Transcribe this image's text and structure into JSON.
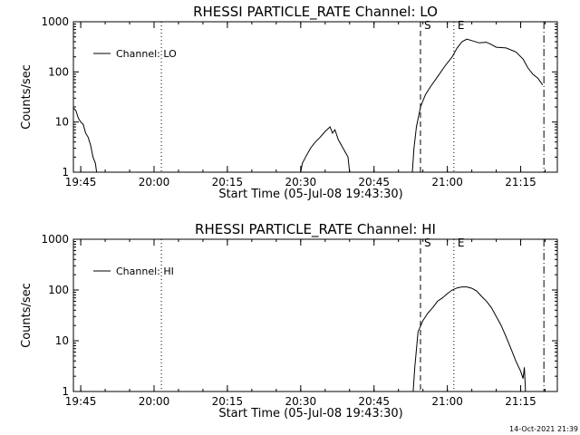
{
  "chart_data": [
    {
      "type": "line",
      "title": "RHESSI PARTICLE_RATE Channel: LO",
      "xlabel": "Start Time (05-Jul-08 19:43:30)",
      "ylabel": "Counts/sec",
      "yscale": "log",
      "ylim": [
        1,
        1000
      ],
      "xlim": [
        "19:43:30",
        "21:22:30"
      ],
      "x_tick_labels": [
        "19:45",
        "20:00",
        "20:15",
        "20:30",
        "20:45",
        "21:00",
        "21:15"
      ],
      "y_tick_labels": [
        "1",
        "10",
        "100",
        "1000"
      ],
      "legend": {
        "label": "Channel: LO",
        "position": "top-left"
      },
      "markers": [
        {
          "time": "20:01:30",
          "label": "",
          "style": "dotted"
        },
        {
          "time": "20:54:30",
          "label": "S",
          "style": "dashed"
        },
        {
          "time": "21:01:20",
          "label": "E",
          "style": "dotted"
        },
        {
          "time": "21:19:45",
          "label": "",
          "style": "dashdot"
        }
      ],
      "series": [
        {
          "name": "Channel: LO",
          "segments": [
            [
              [
                "19:43:30",
                19
              ],
              [
                "19:44:00",
                17
              ],
              [
                "19:44:30",
                12
              ],
              [
                "19:45:00",
                10
              ],
              [
                "19:45:30",
                9
              ],
              [
                "19:46:00",
                6
              ],
              [
                "19:46:30",
                5
              ],
              [
                "19:47:00",
                3.5
              ],
              [
                "19:47:30",
                2
              ],
              [
                "19:48:00",
                1.5
              ],
              [
                "19:48:15",
                1
              ]
            ],
            [
              [
                "20:30:00",
                1
              ],
              [
                "20:30:20",
                1.5
              ],
              [
                "20:31:00",
                2
              ],
              [
                "20:32:00",
                3
              ],
              [
                "20:33:00",
                4
              ],
              [
                "20:34:00",
                5
              ],
              [
                "20:35:00",
                6.5
              ],
              [
                "20:36:00",
                8
              ],
              [
                "20:36:30",
                6
              ],
              [
                "20:37:00",
                7
              ],
              [
                "20:37:40",
                4.5
              ],
              [
                "20:38:40",
                3
              ],
              [
                "20:39:40",
                2
              ],
              [
                "20:40:00",
                1
              ]
            ],
            [
              [
                "20:52:50",
                1
              ],
              [
                "20:53:10",
                3
              ],
              [
                "20:53:40",
                8
              ],
              [
                "20:54:30",
                20
              ],
              [
                "20:55:30",
                35
              ],
              [
                "20:56:30",
                50
              ],
              [
                "20:58:00",
                80
              ],
              [
                "20:59:30",
                130
              ],
              [
                "21:01:00",
                200
              ],
              [
                "21:02:00",
                300
              ],
              [
                "21:03:00",
                400
              ],
              [
                "21:04:00",
                450
              ],
              [
                "21:05:00",
                420
              ],
              [
                "21:06:30",
                380
              ],
              [
                "21:08:00",
                390
              ],
              [
                "21:09:00",
                350
              ],
              [
                "21:10:00",
                310
              ],
              [
                "21:12:00",
                300
              ],
              [
                "21:14:00",
                250
              ],
              [
                "21:15:30",
                180
              ],
              [
                "21:16:30",
                120
              ],
              [
                "21:17:30",
                90
              ],
              [
                "21:18:30",
                75
              ],
              [
                "21:19:30",
                55
              ]
            ]
          ]
        }
      ]
    },
    {
      "type": "line",
      "title": "RHESSI PARTICLE_RATE Channel: HI",
      "xlabel": "Start Time (05-Jul-08 19:43:30)",
      "ylabel": "Counts/sec",
      "yscale": "log",
      "ylim": [
        1,
        1000
      ],
      "xlim": [
        "19:43:30",
        "21:22:30"
      ],
      "x_tick_labels": [
        "19:45",
        "20:00",
        "20:15",
        "20:30",
        "20:45",
        "21:00",
        "21:15"
      ],
      "y_tick_labels": [
        "1",
        "10",
        "100",
        "1000"
      ],
      "legend": {
        "label": "Channel: HI",
        "position": "top-left"
      },
      "markers": [
        {
          "time": "20:01:30",
          "label": "",
          "style": "dotted"
        },
        {
          "time": "20:54:30",
          "label": "S",
          "style": "dashed"
        },
        {
          "time": "21:01:20",
          "label": "E",
          "style": "dotted"
        },
        {
          "time": "21:19:45",
          "label": "",
          "style": "dashdot"
        }
      ],
      "series": [
        {
          "name": "Channel: HI",
          "segments": [
            [
              [
                "20:53:00",
                1
              ],
              [
                "20:53:20",
                3
              ],
              [
                "20:54:00",
                15
              ],
              [
                "20:55:00",
                25
              ],
              [
                "20:56:00",
                35
              ],
              [
                "20:57:00",
                45
              ],
              [
                "20:58:00",
                60
              ],
              [
                "20:59:00",
                70
              ],
              [
                "21:00:00",
                85
              ],
              [
                "21:01:00",
                100
              ],
              [
                "21:02:00",
                110
              ],
              [
                "21:03:00",
                115
              ],
              [
                "21:04:00",
                115
              ],
              [
                "21:05:00",
                108
              ],
              [
                "21:06:00",
                95
              ],
              [
                "21:07:00",
                75
              ],
              [
                "21:08:00",
                60
              ],
              [
                "21:09:00",
                45
              ],
              [
                "21:10:00",
                30
              ],
              [
                "21:11:00",
                20
              ],
              [
                "21:12:00",
                12
              ],
              [
                "21:13:00",
                7
              ],
              [
                "21:14:00",
                4
              ],
              [
                "21:15:00",
                2.5
              ],
              [
                "21:15:30",
                1.8
              ],
              [
                "21:15:45",
                3
              ],
              [
                "21:16:00",
                1
              ]
            ]
          ]
        }
      ]
    }
  ],
  "timestamp": "14-Oct-2021 21:39"
}
